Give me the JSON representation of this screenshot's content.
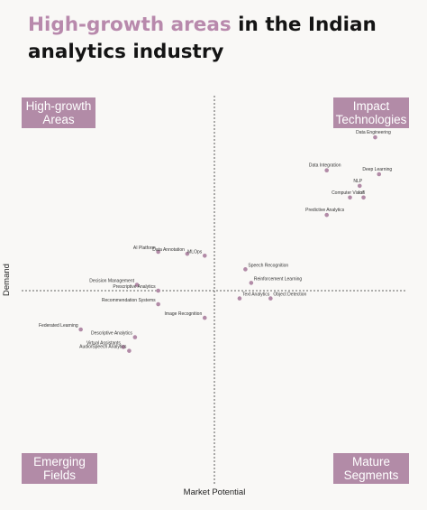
{
  "title": {
    "highlight": "High-growth areas",
    "rest": " in the Indian analytics industry"
  },
  "quadrants": {
    "top_left": "High-growth Areas",
    "top_right": "Impact Technologies",
    "bottom_left": "Emerging Fields",
    "bottom_right": "Mature Segments"
  },
  "colors": {
    "accent": "#b889ac",
    "quadrant_box": "#b28ba7",
    "point": "#b28ba7"
  },
  "chart_data": {
    "type": "scatter",
    "title": "High-growth areas in the Indian analytics industry",
    "xlabel": "Market Potential",
    "ylabel": "Demand",
    "xlim": [
      -1,
      1
    ],
    "ylim": [
      -1,
      1
    ],
    "grid": false,
    "points": [
      {
        "label": "Data Engineering",
        "x": 0.83,
        "y": 0.79
      },
      {
        "label": "Data Integration",
        "x": 0.58,
        "y": 0.62
      },
      {
        "label": "Deep Learning",
        "x": 0.85,
        "y": 0.6
      },
      {
        "label": "NLP",
        "x": 0.75,
        "y": 0.54
      },
      {
        "label": "Computer Vision",
        "x": 0.7,
        "y": 0.48
      },
      {
        "label": "IoT",
        "x": 0.77,
        "y": 0.48
      },
      {
        "label": "Predictive Analytics",
        "x": 0.58,
        "y": 0.39
      },
      {
        "label": "AI Platform",
        "x": -0.29,
        "y": 0.2
      },
      {
        "label": "Data Annotation",
        "x": -0.14,
        "y": 0.19
      },
      {
        "label": "MLOps",
        "x": -0.05,
        "y": 0.18
      },
      {
        "label": "Speech Recognition",
        "x": 0.16,
        "y": 0.11
      },
      {
        "label": "Reinforcement Learning",
        "x": 0.19,
        "y": 0.04
      },
      {
        "label": "Decision Management",
        "x": -0.4,
        "y": 0.03
      },
      {
        "label": "Prescriptive Analytics",
        "x": -0.29,
        "y": 0.0
      },
      {
        "label": "Object Detection",
        "x": 0.29,
        "y": -0.04
      },
      {
        "label": "Text Analytics",
        "x": 0.13,
        "y": -0.04
      },
      {
        "label": "Recommendation Systems",
        "x": -0.29,
        "y": -0.07
      },
      {
        "label": "Image Recognition",
        "x": -0.05,
        "y": -0.14
      },
      {
        "label": "Federated Learning",
        "x": -0.69,
        "y": -0.2
      },
      {
        "label": "Descriptive Analytics",
        "x": -0.41,
        "y": -0.24
      },
      {
        "label": "Virtual Assistants",
        "x": -0.47,
        "y": -0.29
      },
      {
        "label": "Audio/Speech Analytics",
        "x": -0.44,
        "y": -0.31
      }
    ]
  }
}
